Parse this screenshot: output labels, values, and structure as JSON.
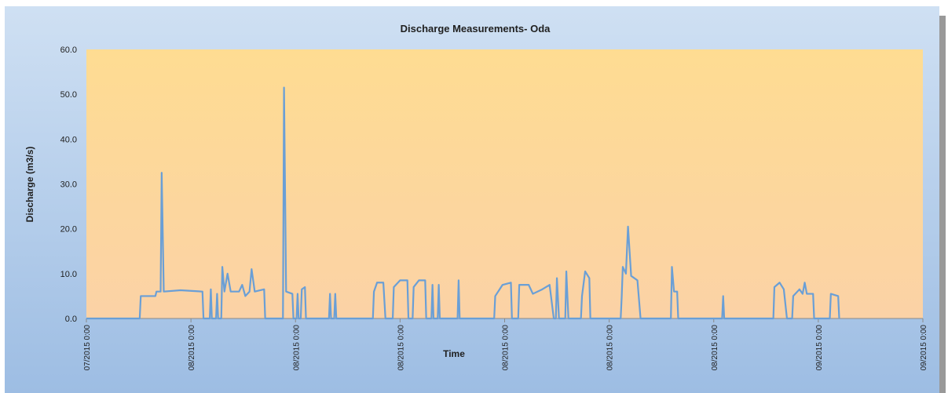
{
  "chart_data": {
    "type": "line",
    "title": "Discharge Measurements- Oda",
    "y_label": "Discharge (m3/s)",
    "x_label": "Time",
    "xlim": [
      0,
      8
    ],
    "xticks": [
      {
        "value": 0,
        "label": "07/2015 0:00"
      },
      {
        "value": 1,
        "label": "08/2015 0:00"
      },
      {
        "value": 2,
        "label": "08/2015 0:00"
      },
      {
        "value": 3,
        "label": "08/2015 0:00"
      },
      {
        "value": 4,
        "label": "08/2015 0:00"
      },
      {
        "value": 5,
        "label": "08/2015 0:00"
      },
      {
        "value": 6,
        "label": "08/2015 0:00"
      },
      {
        "value": 7,
        "label": "09/2015 0:00"
      },
      {
        "value": 8,
        "label": "09/2015 0:00"
      }
    ],
    "ylim": [
      0,
      60
    ],
    "yticks": [
      {
        "value": 0,
        "label": "0.0"
      },
      {
        "value": 10,
        "label": "10.0"
      },
      {
        "value": 20,
        "label": "20.0"
      },
      {
        "value": 30,
        "label": "30.0"
      },
      {
        "value": 40,
        "label": "40.0"
      },
      {
        "value": 50,
        "label": "50.0"
      },
      {
        "value": 60,
        "label": "60.0"
      }
    ],
    "x": [
      0,
      0.51,
      0.52,
      0.66,
      0.67,
      0.71,
      0.72,
      0.74,
      0.9,
      1.11,
      1.12,
      1.18,
      1.19,
      1.2,
      1.24,
      1.25,
      1.26,
      1.29,
      1.3,
      1.32,
      1.35,
      1.38,
      1.46,
      1.49,
      1.52,
      1.56,
      1.58,
      1.61,
      1.7,
      1.71,
      1.88,
      1.89,
      1.91,
      1.97,
      1.98,
      2.01,
      2.02,
      2.03,
      2.05,
      2.06,
      2.09,
      2.1,
      2.32,
      2.33,
      2.34,
      2.37,
      2.38,
      2.39,
      2.74,
      2.75,
      2.78,
      2.84,
      2.86,
      2.93,
      2.94,
      3.0,
      3.07,
      3.08,
      3.12,
      3.13,
      3.18,
      3.24,
      3.25,
      3.3,
      3.31,
      3.32,
      3.36,
      3.37,
      3.38,
      3.55,
      3.56,
      3.57,
      3.9,
      3.91,
      3.98,
      4.06,
      4.07,
      4.13,
      4.14,
      4.23,
      4.27,
      4.36,
      4.43,
      4.47,
      4.49,
      4.5,
      4.52,
      4.58,
      4.59,
      4.61,
      4.73,
      4.74,
      4.77,
      4.81,
      4.82,
      5.11,
      5.12,
      5.13,
      5.16,
      5.18,
      5.21,
      5.27,
      5.3,
      5.59,
      5.6,
      5.62,
      5.65,
      5.66,
      6.08,
      6.09,
      6.1,
      6.57,
      6.58,
      6.63,
      6.67,
      6.7,
      6.75,
      6.76,
      6.82,
      6.85,
      6.87,
      6.89,
      6.95,
      6.96,
      7.11,
      7.12,
      7.19,
      7.2
    ],
    "series": [
      {
        "color": "#6a9fd6",
        "values": [
          0,
          0,
          5,
          5,
          6,
          6,
          32.5,
          6,
          6.3,
          6,
          0,
          0,
          6.5,
          0,
          0,
          5.5,
          0,
          0,
          11.5,
          6,
          10,
          6,
          6,
          7.5,
          5,
          6,
          11,
          6,
          6.5,
          0,
          0,
          51.5,
          6,
          5.5,
          0,
          0,
          5.5,
          0,
          0,
          6.5,
          7,
          0,
          0,
          5.5,
          0,
          0,
          5.5,
          0,
          0,
          6,
          8,
          8,
          0,
          0,
          7,
          8.5,
          8.5,
          0,
          0,
          7,
          8.5,
          8.5,
          0,
          0,
          7.5,
          0,
          0,
          7.5,
          0,
          0,
          8.5,
          0,
          0,
          5,
          7.5,
          8,
          0,
          0,
          7.5,
          7.5,
          5.5,
          6.5,
          7.5,
          0,
          0,
          9,
          0,
          0,
          10.5,
          0,
          0,
          5,
          10.5,
          9,
          0,
          0,
          5,
          11.5,
          10,
          20.5,
          9.5,
          8.5,
          0,
          0,
          11.5,
          6,
          6,
          0,
          0,
          5,
          0,
          0,
          7,
          8,
          6.5,
          0,
          0,
          5,
          6.5,
          5.5,
          8,
          5.5,
          5.5,
          0,
          0,
          5.5,
          5,
          0
        ]
      }
    ]
  }
}
